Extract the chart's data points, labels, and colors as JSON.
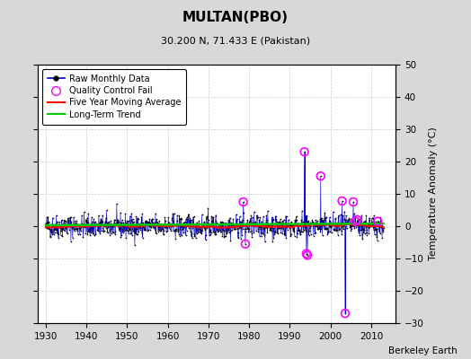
{
  "title": "MULTAN(PBO)",
  "subtitle": "30.200 N, 71.433 E (Pakistan)",
  "credit": "Berkeley Earth",
  "xlim": [
    1928,
    2016
  ],
  "ylim": [
    -30,
    50
  ],
  "yticks": [
    -30,
    -20,
    -10,
    0,
    10,
    20,
    30,
    40,
    50
  ],
  "xticks": [
    1930,
    1940,
    1950,
    1960,
    1970,
    1980,
    1990,
    2000,
    2010
  ],
  "ylabel": "Temperature Anomaly (°C)",
  "raw_color": "#0000cc",
  "dot_color": "#000000",
  "ma_color": "#ff0000",
  "trend_color": "#00cc00",
  "qc_color": "#ff00ff",
  "figure_bg": "#d8d8d8",
  "plot_bg": "#ffffff",
  "grid_color": "#cccccc",
  "seed": 42,
  "noise_std": 1.8,
  "n_years_start": 1930,
  "n_years_end": 2013,
  "qc_points": [
    {
      "year": 1978.5,
      "value": 7.5
    },
    {
      "year": 1979.0,
      "value": -5.5
    },
    {
      "year": 1993.5,
      "value": 23.0
    },
    {
      "year": 1994.0,
      "value": -8.5
    },
    {
      "year": 1994.3,
      "value": -9.0
    },
    {
      "year": 1997.5,
      "value": 15.5
    },
    {
      "year": 2002.8,
      "value": 7.8
    },
    {
      "year": 2005.5,
      "value": 7.5
    },
    {
      "year": 2006.0,
      "value": 1.5
    },
    {
      "year": 2006.5,
      "value": 2.0
    },
    {
      "year": 2011.5,
      "value": 1.5
    },
    {
      "year": 2003.5,
      "value": -27.0
    }
  ],
  "spike_from_zero": [
    {
      "year": 1993.5,
      "value": 23.0
    },
    {
      "year": 2003.5,
      "value": -27.0
    }
  ]
}
